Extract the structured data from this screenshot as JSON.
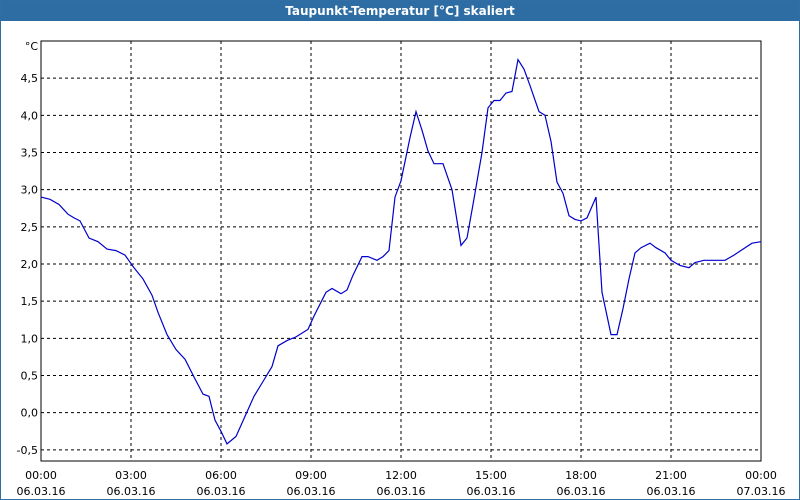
{
  "window": {
    "title": "Taupunkt-Temperatur [°C] skaliert"
  },
  "colors": {
    "titlebar": "#2d6da3",
    "line": "#0000cc",
    "grid": "#000000"
  },
  "chart_data": {
    "type": "line",
    "title": "Taupunkt-Temperatur [°C] skaliert",
    "ylabel": "°C",
    "xlabel": "",
    "ylim": [
      -0.65,
      5.0
    ],
    "xlim": [
      0,
      24
    ],
    "grid": true,
    "y_ticks": [
      -0.5,
      0.0,
      0.5,
      1.0,
      1.5,
      2.0,
      2.5,
      3.0,
      3.5,
      4.0,
      4.5
    ],
    "y_tick_labels": [
      "-0,5",
      "0,0",
      "0,5",
      "1,0",
      "1,5",
      "2,0",
      "2,5",
      "3,0",
      "3,5",
      "4,0",
      "4,5"
    ],
    "x_ticks": [
      {
        "hour": 0,
        "time": "00:00",
        "date": "06.03.16"
      },
      {
        "hour": 3,
        "time": "03:00",
        "date": "06.03.16"
      },
      {
        "hour": 6,
        "time": "06:00",
        "date": "06.03.16"
      },
      {
        "hour": 9,
        "time": "09:00",
        "date": "06.03.16"
      },
      {
        "hour": 12,
        "time": "12:00",
        "date": "06.03.16"
      },
      {
        "hour": 15,
        "time": "15:00",
        "date": "06.03.16"
      },
      {
        "hour": 18,
        "time": "18:00",
        "date": "06.03.16"
      },
      {
        "hour": 21,
        "time": "21:00",
        "date": "06.03.16"
      },
      {
        "hour": 24,
        "time": "00:00",
        "date": "07.03.16"
      }
    ],
    "series": [
      {
        "x": [
          0,
          0.3,
          0.6,
          0.9,
          1.1,
          1.3,
          1.6,
          1.9,
          2.2,
          2.5,
          2.8,
          3.1,
          3.4,
          3.7,
          3.9,
          4.2,
          4.5,
          4.8,
          5.1,
          5.4,
          5.6,
          5.8,
          6.0,
          6.2,
          6.5,
          6.8,
          7.1,
          7.4,
          7.7,
          7.9,
          8.2,
          8.5,
          8.9,
          9.1,
          9.5,
          9.7,
          10.0,
          10.2,
          10.4,
          10.7,
          10.9,
          11.2,
          11.4,
          11.6,
          11.8,
          12.0,
          12.3,
          12.5,
          12.7,
          12.9,
          13.1,
          13.4,
          13.7,
          14.0,
          14.2,
          14.4,
          14.7,
          14.9,
          15.1,
          15.3,
          15.5,
          15.7,
          15.9,
          16.1,
          16.3,
          16.6,
          16.8,
          17.0,
          17.2,
          17.4,
          17.6,
          17.8,
          18.0,
          18.2,
          18.5,
          18.7,
          19.0,
          19.2,
          19.4,
          19.6,
          19.8,
          20.0,
          20.3,
          20.5,
          20.8,
          21.0,
          21.3,
          21.6,
          21.8,
          22.1,
          22.4,
          22.8,
          23.1,
          23.4,
          23.7,
          24.0
        ],
        "y": [
          2.9,
          2.87,
          2.8,
          2.67,
          2.62,
          2.58,
          2.35,
          2.3,
          2.2,
          2.18,
          2.12,
          1.95,
          1.8,
          1.58,
          1.35,
          1.05,
          0.85,
          0.72,
          0.48,
          0.25,
          0.22,
          -0.1,
          -0.25,
          -0.42,
          -0.32,
          -0.05,
          0.22,
          0.42,
          0.62,
          0.9,
          0.97,
          1.02,
          1.12,
          1.3,
          1.62,
          1.67,
          1.6,
          1.65,
          1.85,
          2.1,
          2.1,
          2.05,
          2.1,
          2.18,
          2.9,
          3.12,
          3.7,
          4.05,
          3.8,
          3.52,
          3.35,
          3.35,
          3.0,
          2.25,
          2.35,
          2.8,
          3.5,
          4.1,
          4.2,
          4.2,
          4.3,
          4.32,
          4.75,
          4.62,
          4.4,
          4.05,
          4.0,
          3.65,
          3.1,
          2.95,
          2.65,
          2.6,
          2.58,
          2.62,
          2.9,
          1.62,
          1.05,
          1.05,
          1.4,
          1.8,
          2.15,
          2.22,
          2.28,
          2.22,
          2.15,
          2.05,
          1.98,
          1.95,
          2.02,
          2.05,
          2.05,
          2.05,
          2.12,
          2.2,
          2.28,
          2.3
        ]
      }
    ]
  }
}
